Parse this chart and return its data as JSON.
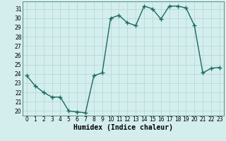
{
  "x": [
    0,
    1,
    2,
    3,
    4,
    5,
    6,
    7,
    8,
    9,
    10,
    11,
    12,
    13,
    14,
    15,
    16,
    17,
    18,
    19,
    20,
    21,
    22,
    23
  ],
  "y": [
    23.8,
    22.7,
    22.0,
    21.5,
    21.5,
    20.0,
    19.9,
    19.8,
    23.8,
    24.1,
    30.0,
    30.3,
    29.5,
    29.2,
    31.3,
    31.0,
    29.9,
    31.3,
    31.3,
    31.1,
    29.2,
    24.1,
    24.6,
    24.7
  ],
  "line_color": "#1a6b5e",
  "marker": "+",
  "marker_size": 4,
  "marker_lw": 1.0,
  "bg_color": "#d4eeee",
  "grid_color": "#b8d8d8",
  "xlabel": "Humidex (Indice chaleur)",
  "ylim": [
    19.5,
    31.8
  ],
  "xlim": [
    -0.5,
    23.5
  ],
  "yticks": [
    20,
    21,
    22,
    23,
    24,
    25,
    26,
    27,
    28,
    29,
    30,
    31
  ],
  "xticks": [
    0,
    1,
    2,
    3,
    4,
    5,
    6,
    7,
    8,
    9,
    10,
    11,
    12,
    13,
    14,
    15,
    16,
    17,
    18,
    19,
    20,
    21,
    22,
    23
  ],
  "tick_label_fontsize": 5.5,
  "xlabel_fontsize": 7,
  "line_width": 1.0
}
